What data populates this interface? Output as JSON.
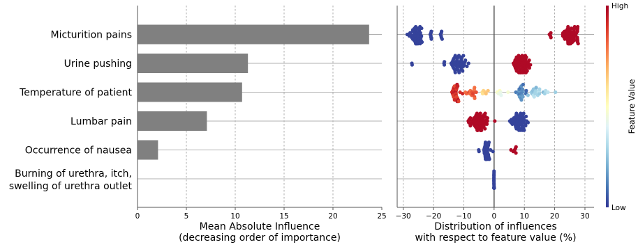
{
  "chart_data": [
    {
      "type": "bar",
      "orientation": "horizontal",
      "categories": [
        "Micturition pains",
        "Urine pushing",
        "Temperature of patient",
        "Lumbar pain",
        "Occurrence of nausea",
        "Burning of urethra, itch, swelling of urethra outlet"
      ],
      "category_lines": [
        [
          "Micturition pains"
        ],
        [
          "Urine pushing"
        ],
        [
          "Temperature of patient"
        ],
        [
          "Lumbar pain"
        ],
        [
          "Occurrence of nausea"
        ],
        [
          "Burning of urethra, itch,",
          "swelling of urethra outlet"
        ]
      ],
      "values": [
        23.7,
        11.3,
        10.7,
        7.1,
        2.1,
        0.0
      ],
      "xlabel": [
        "Mean Absolute Influence",
        "(decreasing order of importance)"
      ],
      "xlim": [
        0,
        25
      ],
      "xticks": [
        0,
        5,
        10,
        15,
        20,
        25
      ],
      "bar_color": "#808080",
      "grid": true
    },
    {
      "type": "scatter",
      "subtype": "beeswarm",
      "categories": [
        "Micturition pains",
        "Urine pushing",
        "Temperature of patient",
        "Lumbar pain",
        "Occurrence of nausea",
        "Burning of urethra, itch, swelling of urethra outlet"
      ],
      "series": [
        {
          "clusters": [
            {
              "center": -25.5,
              "spread": 2.2,
              "count": 45,
              "feature_value": 0.02
            },
            {
              "center": -20.8,
              "spread": 0.3,
              "count": 6,
              "feature_value": 0.02
            },
            {
              "center": -17.5,
              "spread": 0.3,
              "count": 6,
              "feature_value": 0.02
            },
            {
              "center": 25.5,
              "spread": 2.5,
              "count": 55,
              "feature_value": 0.98
            },
            {
              "center": 18.5,
              "spread": 0.6,
              "count": 4,
              "feature_value": 0.98
            }
          ]
        },
        {
          "clusters": [
            {
              "center": -12.0,
              "spread": 2.6,
              "count": 45,
              "feature_value": 0.02
            },
            {
              "center": -16.5,
              "spread": 0.3,
              "count": 3,
              "feature_value": 0.02
            },
            {
              "center": -27.0,
              "spread": 0.3,
              "count": 2,
              "feature_value": 0.02
            },
            {
              "center": 9.0,
              "spread": 2.5,
              "count": 65,
              "feature_value": 0.98
            }
          ]
        },
        {
          "clusters": [
            {
              "center": -12.5,
              "spread": 1.5,
              "count": 25,
              "feature_value": 0.92
            },
            {
              "center": -8.0,
              "spread": 2.5,
              "count": 14,
              "feature_value": 0.82
            },
            {
              "center": -3.0,
              "spread": 1.5,
              "count": 6,
              "feature_value": 0.6
            },
            {
              "center": 2.5,
              "spread": 2.5,
              "count": 6,
              "feature_value": 0.45
            },
            {
              "center": 9.0,
              "spread": 1.5,
              "count": 20,
              "feature_value": 0.12
            },
            {
              "center": 14.5,
              "spread": 3.5,
              "count": 22,
              "feature_value": 0.28
            }
          ],
          "feature_value_range": "mixed"
        },
        {
          "clusters": [
            {
              "center": -5.0,
              "spread": 2.5,
              "count": 65,
              "feature_value": 0.98
            },
            {
              "center": 8.5,
              "spread": 2.5,
              "count": 50,
              "feature_value": 0.02
            }
          ]
        },
        {
          "clusters": [
            {
              "center": -2.5,
              "spread": 1.2,
              "count": 35,
              "feature_value": 0.02
            },
            {
              "center": -5.0,
              "spread": 0.3,
              "count": 2,
              "feature_value": 0.02
            },
            {
              "center": 6.5,
              "spread": 1.0,
              "count": 6,
              "feature_value": 0.98
            }
          ]
        },
        {
          "clusters": [
            {
              "center": 0.0,
              "spread": 0.05,
              "count": 30,
              "feature_value": 0.02
            }
          ]
        }
      ],
      "xlabel": [
        "Distribution of influences",
        "with respect to feature value (%)"
      ],
      "xlim": [
        -32,
        33
      ],
      "xticks": [
        -30,
        -20,
        -10,
        0,
        10,
        20,
        30
      ],
      "grid": true,
      "zero_line": true
    }
  ],
  "colorbar": {
    "label": "Feature Value",
    "high_label": "High",
    "low_label": "Low",
    "colormap": [
      "#313695",
      "#4575b4",
      "#74add1",
      "#abd9e9",
      "#e0f3f8",
      "#ffffbf",
      "#fee090",
      "#fdae61",
      "#f46d43",
      "#d73027",
      "#a50026"
    ]
  }
}
